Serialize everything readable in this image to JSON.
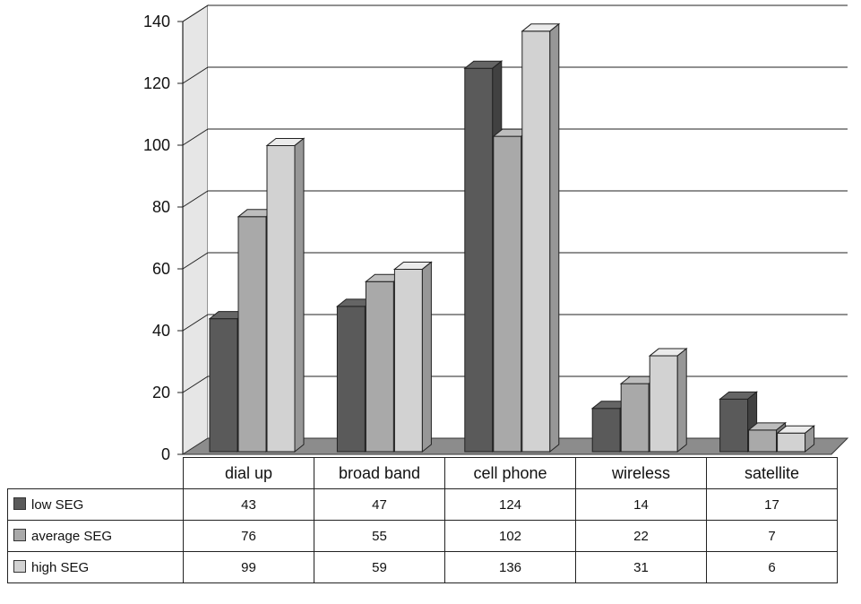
{
  "chart_data": {
    "type": "bar",
    "title": "",
    "xlabel": "",
    "ylabel": "",
    "ylim": [
      0,
      140
    ],
    "yticks": [
      0,
      20,
      40,
      60,
      80,
      100,
      120,
      140
    ],
    "grid": true,
    "legend": "table-left",
    "categories": [
      "dial up",
      "broad band",
      "cell phone",
      "wireless",
      "satellite"
    ],
    "series": [
      {
        "name": "low SEG",
        "values": [
          43,
          47,
          124,
          14,
          17
        ],
        "color": "#5a5a5a"
      },
      {
        "name": "average SEG",
        "values": [
          76,
          55,
          102,
          22,
          7
        ],
        "color": "#a9a9a9"
      },
      {
        "name": "high SEG",
        "values": [
          99,
          59,
          136,
          31,
          6
        ],
        "color": "#d2d2d2"
      }
    ]
  }
}
